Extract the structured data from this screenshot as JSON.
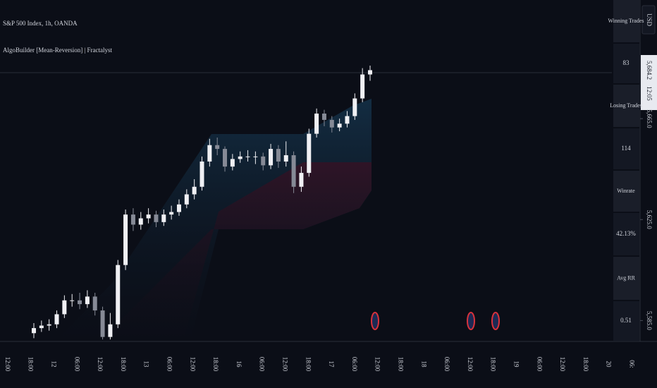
{
  "header": {
    "symbol": "S&P 500 Index, 1h, OANDA",
    "indicator": "AlgoBuilder [Mean-Reversion] | Fractalyst"
  },
  "chart_data": {
    "type": "candlestick",
    "open": [
      5580.0,
      5582.0,
      5583.0,
      5583.5,
      5587.5,
      5593.0,
      5593.0,
      5591.5,
      5594.5,
      5589.0,
      5578.5,
      5583.5,
      5607.0,
      5627.0,
      5623.0,
      5625.5,
      5627.0,
      5624.0,
      5627.0,
      5628.0,
      5631.0,
      5635.0,
      5638.0,
      5648.0,
      5654.5,
      5653.0,
      5646.0,
      5649.0,
      5650.0,
      5650.0,
      5650.0,
      5646.5,
      5653.0,
      5648.0,
      5650.5,
      5638.0,
      5643.5,
      5659.0,
      5667.0,
      5664.5,
      5661.5,
      5663.0,
      5666.0,
      5673.0,
      5682.5
    ],
    "high": [
      5584.0,
      5585.0,
      5585.5,
      5589.0,
      5595.0,
      5595.5,
      5596.0,
      5597.0,
      5596.0,
      5590.5,
      5588.0,
      5609.0,
      5629.0,
      5629.5,
      5628.0,
      5629.5,
      5628.5,
      5629.0,
      5630.5,
      5633.0,
      5637.0,
      5641.0,
      5650.0,
      5657.0,
      5657.5,
      5654.0,
      5651.0,
      5652.0,
      5652.5,
      5652.0,
      5651.5,
      5655.0,
      5654.5,
      5656.0,
      5652.0,
      5646.0,
      5661.0,
      5669.0,
      5668.5,
      5666.0,
      5665.0,
      5668.0,
      5675.0,
      5685.0,
      5686.0
    ],
    "low": [
      5578.0,
      5580.5,
      5581.0,
      5582.0,
      5586.0,
      5590.5,
      5589.5,
      5590.0,
      5587.0,
      5577.5,
      5577.5,
      5582.0,
      5605.0,
      5620.5,
      5621.0,
      5623.5,
      5622.0,
      5622.5,
      5625.0,
      5626.5,
      5629.5,
      5633.0,
      5636.5,
      5646.0,
      5650.5,
      5644.0,
      5644.5,
      5647.5,
      5648.0,
      5647.0,
      5644.5,
      5645.0,
      5645.5,
      5646.0,
      5635.5,
      5636.0,
      5642.0,
      5657.5,
      5662.0,
      5659.5,
      5660.0,
      5661.5,
      5664.5,
      5671.5,
      5680.0
    ],
    "close": [
      5582.0,
      5583.0,
      5583.5,
      5587.5,
      5593.0,
      5593.0,
      5591.5,
      5594.5,
      5589.0,
      5578.5,
      5583.5,
      5607.0,
      5627.0,
      5623.0,
      5625.5,
      5627.0,
      5624.0,
      5627.0,
      5628.0,
      5631.0,
      5635.0,
      5638.0,
      5648.0,
      5654.5,
      5653.0,
      5646.0,
      5649.0,
      5650.0,
      5650.0,
      5650.0,
      5646.5,
      5653.0,
      5648.0,
      5650.5,
      5638.0,
      5643.5,
      5659.0,
      5667.0,
      5664.5,
      5661.5,
      5663.0,
      5666.0,
      5673.0,
      5682.5,
      5684.2
    ],
    "ylim": [
      5577,
      5712
    ],
    "yticks": [
      {
        "value": 5665,
        "label": "5,665.0"
      },
      {
        "value": 5625,
        "label": "5,625.0"
      },
      {
        "value": 5585,
        "label": "5,585.0"
      }
    ],
    "last_price": {
      "value": 5684.2,
      "label": "5,684.2"
    },
    "countdown": "12:05",
    "currency": "USD",
    "time_labels": [
      "12:00",
      "18:00",
      "12",
      "06:00",
      "12:00",
      "18:00",
      "13",
      "06:00",
      "12:00",
      "18:00",
      "16",
      "06:00",
      "12:00",
      "18:00",
      "17",
      "06:00",
      "12:00",
      "18:00",
      "18",
      "06:00",
      "12:00",
      "18:00",
      "19",
      "06:00",
      "12:00",
      "18:00",
      "20",
      "06:"
    ]
  },
  "stats": [
    {
      "label": "Winning Trades",
      "value": "83"
    },
    {
      "label": "Losing Trades",
      "value": "114"
    },
    {
      "label": "Winrate",
      "value": "42.13%"
    },
    {
      "label": "Avg RR",
      "value": "0.51"
    }
  ]
}
